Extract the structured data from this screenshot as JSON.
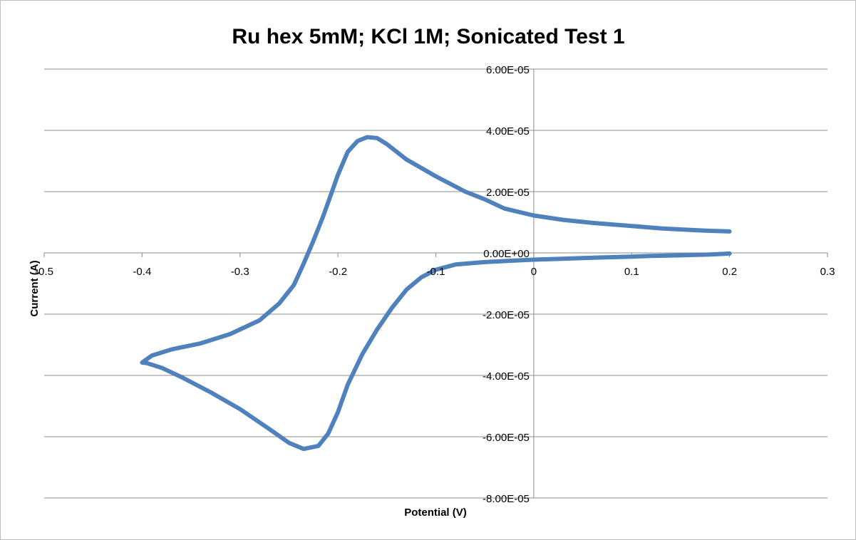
{
  "chart_data": {
    "type": "scatter",
    "title": "Ru hex 5mM; KCl 1M; Sonicated Test 1",
    "xlabel": "Potential (V)",
    "ylabel": "Current (A)",
    "xlim": [
      -0.5,
      0.3
    ],
    "ylim": [
      -8e-05,
      6e-05
    ],
    "x_ticks": [
      -0.5,
      -0.4,
      -0.3,
      -0.2,
      -0.1,
      0,
      0.1,
      0.2,
      0.3
    ],
    "x_tick_labels": [
      "-0.5",
      "-0.4",
      "-0.3",
      "-0.2",
      "-0.1",
      "0",
      "0.1",
      "0.2",
      "0.3"
    ],
    "y_ticks": [
      6e-05,
      4e-05,
      2e-05,
      0,
      -2e-05,
      -4e-05,
      -6e-05,
      -8e-05
    ],
    "y_tick_labels": [
      "6.00E-05",
      "4.00E-05",
      "2.00E-05",
      "0.00E+00",
      "-2.00E-05",
      "-4.00E-05",
      "-6.00E-05",
      "-8.00E-05"
    ],
    "grid": "horizontal",
    "legend": "none",
    "series_color": "#4f81bd",
    "series": [
      {
        "x": [
          0.2,
          0.18,
          0.15,
          0.12,
          0.1,
          0.07,
          0.05,
          0.02,
          0.0,
          -0.02,
          -0.05,
          -0.08,
          -0.1,
          -0.115,
          -0.13,
          -0.145,
          -0.16,
          -0.175,
          -0.19,
          -0.2,
          -0.21,
          -0.22,
          -0.235,
          -0.25,
          -0.27,
          -0.3,
          -0.33,
          -0.36,
          -0.38,
          -0.395,
          -0.4,
          -0.39,
          -0.37,
          -0.34,
          -0.31,
          -0.28,
          -0.26,
          -0.245,
          -0.235,
          -0.225,
          -0.215,
          -0.205,
          -0.2,
          -0.19,
          -0.18,
          -0.17,
          -0.16,
          -0.15,
          -0.13,
          -0.1,
          -0.07,
          -0.05,
          -0.03,
          0.0,
          0.03,
          0.06,
          0.1,
          0.13,
          0.16,
          0.18,
          0.2
        ],
        "y": [
          -2e-07,
          -5e-07,
          -8e-07,
          -1e-06,
          -1.2e-06,
          -1.5e-06,
          -1.7e-06,
          -2e-06,
          -2.2e-06,
          -2.5e-06,
          -3e-06,
          -3.8e-06,
          -5.5e-06,
          -8e-06,
          -1.2e-05,
          -1.8e-05,
          -2.5e-05,
          -3.3e-05,
          -4.3e-05,
          -5.2e-05,
          -5.9e-05,
          -6.3e-05,
          -6.4e-05,
          -6.2e-05,
          -5.75e-05,
          -5.1e-05,
          -4.55e-05,
          -4.05e-05,
          -3.75e-05,
          -3.6e-05,
          -3.58e-05,
          -3.35e-05,
          -3.15e-05,
          -2.95e-05,
          -2.65e-05,
          -2.2e-05,
          -1.65e-05,
          -1.05e-05,
          -3.5e-06,
          4e-06,
          1.2e-05,
          2.1e-05,
          2.55e-05,
          3.3e-05,
          3.65e-05,
          3.78e-05,
          3.75e-05,
          3.55e-05,
          3.05e-05,
          2.5e-05,
          2e-05,
          1.75e-05,
          1.45e-05,
          1.22e-05,
          1.08e-05,
          9.8e-06,
          8.8e-06,
          8e-06,
          7.5e-06,
          7.2e-06,
          7e-06
        ]
      }
    ]
  }
}
